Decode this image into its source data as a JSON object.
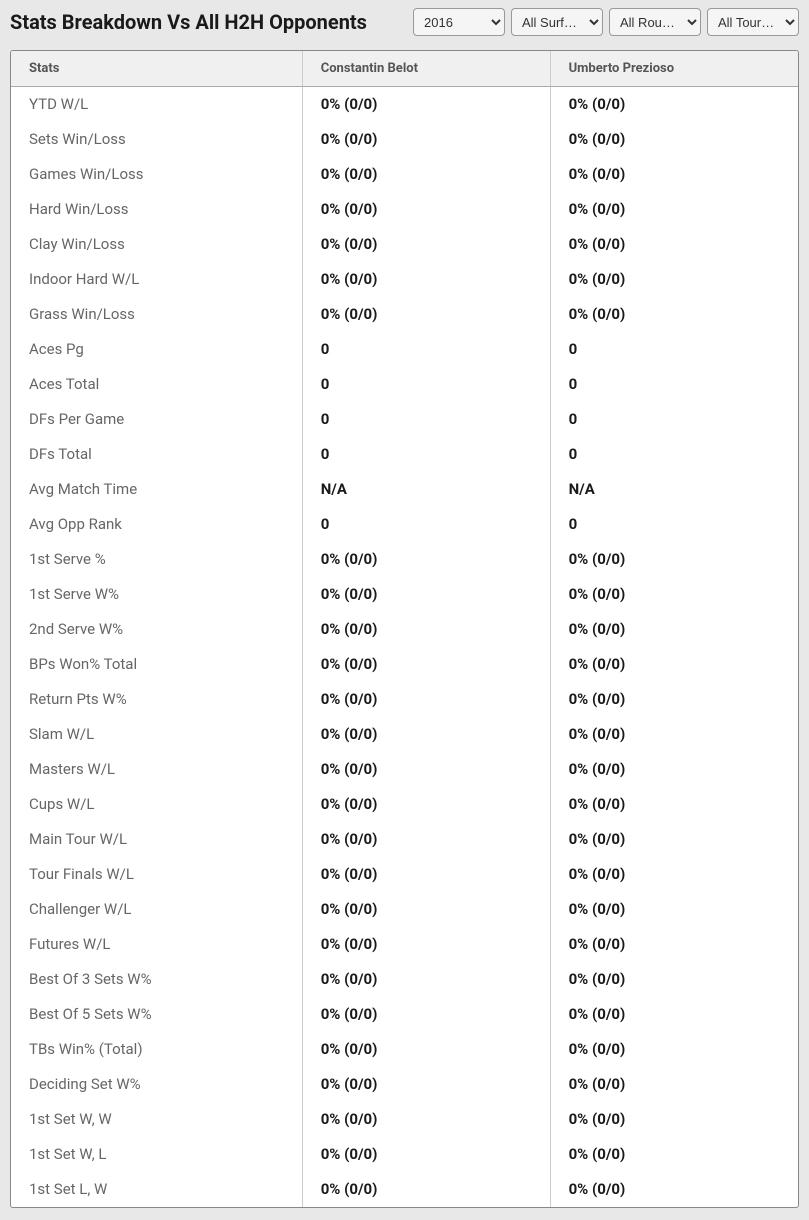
{
  "header": {
    "title": "Stats Breakdown Vs All H2H Opponents",
    "filters": {
      "year": {
        "selected": "2016",
        "options": [
          "2016"
        ]
      },
      "surface": {
        "selected": "All Surf…",
        "options": [
          "All Surf…"
        ]
      },
      "round": {
        "selected": "All Rou…",
        "options": [
          "All Rou…"
        ]
      },
      "tournament": {
        "selected": "All Tour…",
        "options": [
          "All Tour…"
        ]
      }
    }
  },
  "table": {
    "columns": {
      "stats": "Stats",
      "player1": "Constantin Belot",
      "player2": "Umberto Prezioso"
    },
    "rows": [
      {
        "label": "YTD W/L",
        "p1": "0% (0/0)",
        "p2": "0% (0/0)"
      },
      {
        "label": "Sets Win/Loss",
        "p1": "0% (0/0)",
        "p2": "0% (0/0)"
      },
      {
        "label": "Games Win/Loss",
        "p1": "0% (0/0)",
        "p2": "0% (0/0)"
      },
      {
        "label": "Hard Win/Loss",
        "p1": "0% (0/0)",
        "p2": "0% (0/0)"
      },
      {
        "label": "Clay Win/Loss",
        "p1": "0% (0/0)",
        "p2": "0% (0/0)"
      },
      {
        "label": "Indoor Hard W/L",
        "p1": "0% (0/0)",
        "p2": "0% (0/0)"
      },
      {
        "label": "Grass Win/Loss",
        "p1": "0% (0/0)",
        "p2": "0% (0/0)"
      },
      {
        "label": "Aces Pg",
        "p1": "0",
        "p2": "0"
      },
      {
        "label": "Aces Total",
        "p1": "0",
        "p2": "0"
      },
      {
        "label": "DFs Per Game",
        "p1": "0",
        "p2": "0"
      },
      {
        "label": "DFs Total",
        "p1": "0",
        "p2": "0"
      },
      {
        "label": "Avg Match Time",
        "p1": "N/A",
        "p2": "N/A"
      },
      {
        "label": "Avg Opp Rank",
        "p1": "0",
        "p2": "0"
      },
      {
        "label": "1st Serve %",
        "p1": "0% (0/0)",
        "p2": "0% (0/0)"
      },
      {
        "label": "1st Serve W%",
        "p1": "0% (0/0)",
        "p2": "0% (0/0)"
      },
      {
        "label": "2nd Serve W%",
        "p1": "0% (0/0)",
        "p2": "0% (0/0)"
      },
      {
        "label": "BPs Won% Total",
        "p1": "0% (0/0)",
        "p2": "0% (0/0)"
      },
      {
        "label": "Return Pts W%",
        "p1": "0% (0/0)",
        "p2": "0% (0/0)"
      },
      {
        "label": "Slam W/L",
        "p1": "0% (0/0)",
        "p2": "0% (0/0)"
      },
      {
        "label": "Masters W/L",
        "p1": "0% (0/0)",
        "p2": "0% (0/0)"
      },
      {
        "label": "Cups W/L",
        "p1": "0% (0/0)",
        "p2": "0% (0/0)"
      },
      {
        "label": "Main Tour W/L",
        "p1": "0% (0/0)",
        "p2": "0% (0/0)"
      },
      {
        "label": "Tour Finals W/L",
        "p1": "0% (0/0)",
        "p2": "0% (0/0)"
      },
      {
        "label": "Challenger W/L",
        "p1": "0% (0/0)",
        "p2": "0% (0/0)"
      },
      {
        "label": "Futures W/L",
        "p1": "0% (0/0)",
        "p2": "0% (0/0)"
      },
      {
        "label": "Best Of 3 Sets W%",
        "p1": "0% (0/0)",
        "p2": "0% (0/0)"
      },
      {
        "label": "Best Of 5 Sets W%",
        "p1": "0% (0/0)",
        "p2": "0% (0/0)"
      },
      {
        "label": "TBs Win% (Total)",
        "p1": "0% (0/0)",
        "p2": "0% (0/0)"
      },
      {
        "label": "Deciding Set W%",
        "p1": "0% (0/0)",
        "p2": "0% (0/0)"
      },
      {
        "label": "1st Set W, W",
        "p1": "0% (0/0)",
        "p2": "0% (0/0)"
      },
      {
        "label": "1st Set W, L",
        "p1": "0% (0/0)",
        "p2": "0% (0/0)"
      },
      {
        "label": "1st Set L, W",
        "p1": "0% (0/0)",
        "p2": "0% (0/0)"
      }
    ]
  }
}
